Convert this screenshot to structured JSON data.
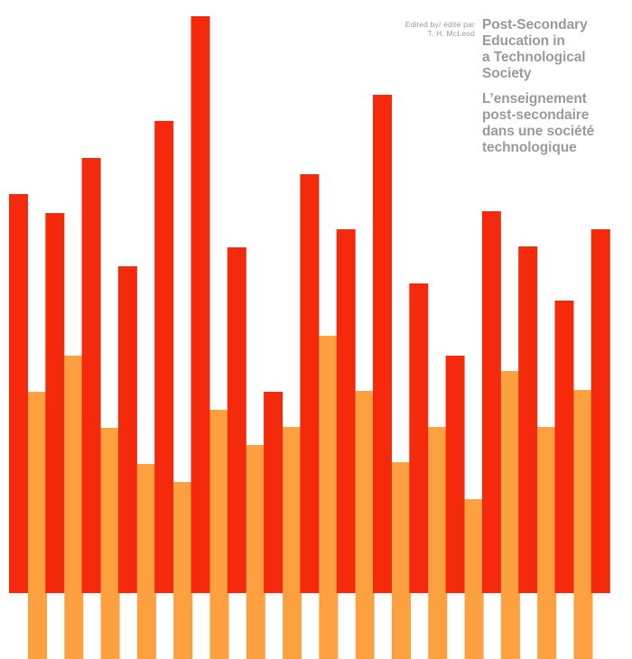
{
  "credit": {
    "line1": "Edited by/ édité par",
    "line2": "T. H. McLeod"
  },
  "title_en": [
    "Post-Secondary",
    "Education in",
    "a Technological",
    "Society"
  ],
  "title_fr": [
    "L’enseignement",
    "post-secondaire",
    "dans une société",
    "technologique"
  ],
  "colors": {
    "red": "#f52a0c",
    "orange": "#fca040",
    "text": "#9a9a9a",
    "background": "#ffffff"
  },
  "artwork": {
    "red_bar_tops": [
      215,
      236,
      175,
      295,
      134,
      18,
      274,
      434,
      193,
      254,
      105,
      314,
      394,
      234,
      273,
      333,
      254
    ],
    "orange_bar_tops": [
      434,
      394,
      474,
      514,
      534,
      454,
      493,
      473,
      372,
      433,
      512,
      473,
      553,
      411,
      473,
      432
    ]
  }
}
